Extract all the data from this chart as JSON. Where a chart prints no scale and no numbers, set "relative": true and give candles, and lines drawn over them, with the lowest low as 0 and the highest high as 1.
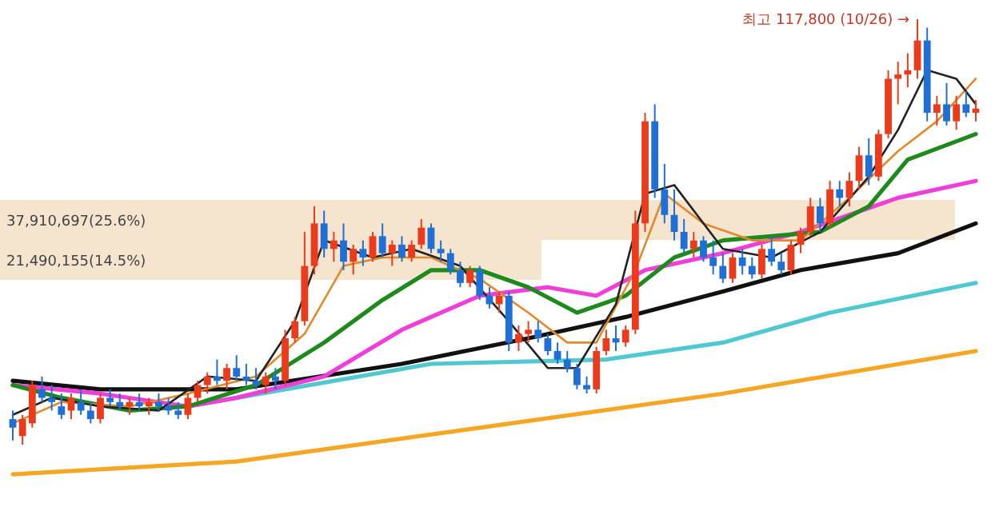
{
  "chart_data": [
    {
      "type": "candlestick",
      "relative": true,
      "categories": [
        null,
        null,
        null,
        null,
        null,
        null,
        null,
        null,
        null,
        null,
        null,
        null,
        null,
        null,
        null,
        null,
        null,
        null,
        null,
        null,
        null,
        null,
        null,
        null,
        null,
        null,
        null,
        null,
        null,
        null,
        null,
        null,
        null,
        null,
        null,
        null,
        null,
        null,
        null,
        null,
        null,
        null,
        null,
        null,
        null,
        null,
        null,
        null,
        null,
        null,
        null,
        null,
        null,
        null,
        null,
        null,
        null,
        null,
        null,
        null,
        null,
        null,
        null,
        null,
        null,
        null,
        null,
        null,
        null,
        null,
        null,
        null,
        null,
        null,
        null,
        null,
        null,
        null,
        null,
        null,
        null,
        null,
        null,
        null,
        null,
        null,
        null,
        null,
        null,
        null,
        null,
        null,
        null,
        null,
        null,
        null,
        null,
        null,
        null,
        null
      ],
      "ohlc": [
        [
          0.06,
          0.08,
          0.01,
          0.04
        ],
        [
          0.02,
          0.07,
          0,
          0.06
        ],
        [
          0.05,
          0.15,
          0.04,
          0.14
        ],
        [
          0.13,
          0.16,
          0.1,
          0.11
        ],
        [
          0.11,
          0.14,
          0.08,
          0.1
        ],
        [
          0.09,
          0.12,
          0.06,
          0.07
        ],
        [
          0.08,
          0.12,
          0.06,
          0.11
        ],
        [
          0.1,
          0.13,
          0.07,
          0.08
        ],
        [
          0.08,
          0.1,
          0.05,
          0.06
        ],
        [
          0.06,
          0.12,
          0.05,
          0.11
        ],
        [
          0.11,
          0.13,
          0.09,
          0.1
        ],
        [
          0.1,
          0.12,
          0.08,
          0.09
        ],
        [
          0.09,
          0.11,
          0.07,
          0.1
        ],
        [
          0.1,
          0.12,
          0.08,
          0.09
        ],
        [
          0.09,
          0.11,
          0.07,
          0.1
        ],
        [
          0.1,
          0.12,
          0.08,
          0.09
        ],
        [
          0.09,
          0.11,
          0.07,
          0.08
        ],
        [
          0.08,
          0.1,
          0.06,
          0.07
        ],
        [
          0.07,
          0.12,
          0.06,
          0.11
        ],
        [
          0.11,
          0.15,
          0.1,
          0.14
        ],
        [
          0.14,
          0.17,
          0.12,
          0.16
        ],
        [
          0.16,
          0.2,
          0.14,
          0.15
        ],
        [
          0.15,
          0.19,
          0.13,
          0.18
        ],
        [
          0.18,
          0.21,
          0.15,
          0.16
        ],
        [
          0.16,
          0.19,
          0.14,
          0.15
        ],
        [
          0.15,
          0.18,
          0.13,
          0.14
        ],
        [
          0.14,
          0.17,
          0.12,
          0.16
        ],
        [
          0.16,
          0.18,
          0.13,
          0.15
        ],
        [
          0.15,
          0.27,
          0.14,
          0.25
        ],
        [
          0.25,
          0.3,
          0.24,
          0.29
        ],
        [
          0.29,
          0.5,
          0.28,
          0.42
        ],
        [
          0.42,
          0.56,
          0.4,
          0.52
        ],
        [
          0.52,
          0.55,
          0.44,
          0.46
        ],
        [
          0.46,
          0.5,
          0.43,
          0.48
        ],
        [
          0.48,
          0.52,
          0.41,
          0.43
        ],
        [
          0.43,
          0.47,
          0.4,
          0.46
        ],
        [
          0.46,
          0.48,
          0.42,
          0.44
        ],
        [
          0.44,
          0.5,
          0.43,
          0.49
        ],
        [
          0.49,
          0.52,
          0.44,
          0.45
        ],
        [
          0.45,
          0.48,
          0.42,
          0.47
        ],
        [
          0.47,
          0.49,
          0.43,
          0.44
        ],
        [
          0.44,
          0.48,
          0.43,
          0.47
        ],
        [
          0.47,
          0.53,
          0.46,
          0.51
        ],
        [
          0.51,
          0.52,
          0.45,
          0.46
        ],
        [
          0.46,
          0.48,
          0.43,
          0.45
        ],
        [
          0.45,
          0.46,
          0.4,
          0.41
        ],
        [
          0.41,
          0.43,
          0.37,
          0.38
        ],
        [
          0.38,
          0.42,
          0.37,
          0.41
        ],
        [
          0.41,
          0.42,
          0.34,
          0.35
        ],
        [
          0.35,
          0.37,
          0.32,
          0.33
        ],
        [
          0.33,
          0.36,
          0.31,
          0.35
        ],
        [
          0.35,
          0.36,
          0.22,
          0.24
        ],
        [
          0.24,
          0.28,
          0.22,
          0.26
        ],
        [
          0.26,
          0.29,
          0.24,
          0.27
        ],
        [
          0.27,
          0.29,
          0.24,
          0.25
        ],
        [
          0.25,
          0.26,
          0.21,
          0.22
        ],
        [
          0.22,
          0.24,
          0.19,
          0.2
        ],
        [
          0.2,
          0.22,
          0.17,
          0.18
        ],
        [
          0.18,
          0.19,
          0.13,
          0.14
        ],
        [
          0.14,
          0.16,
          0.12,
          0.13
        ],
        [
          0.13,
          0.23,
          0.12,
          0.22
        ],
        [
          0.22,
          0.27,
          0.21,
          0.25
        ],
        [
          0.25,
          0.28,
          0.22,
          0.24
        ],
        [
          0.24,
          0.28,
          0.23,
          0.27
        ],
        [
          0.27,
          0.55,
          0.26,
          0.52
        ],
        [
          0.52,
          0.78,
          0.5,
          0.76
        ],
        [
          0.76,
          0.8,
          0.58,
          0.6
        ],
        [
          0.6,
          0.66,
          0.52,
          0.54
        ],
        [
          0.54,
          0.6,
          0.48,
          0.5
        ],
        [
          0.5,
          0.53,
          0.45,
          0.46
        ],
        [
          0.46,
          0.5,
          0.44,
          0.48
        ],
        [
          0.48,
          0.49,
          0.43,
          0.44
        ],
        [
          0.44,
          0.48,
          0.4,
          0.42
        ],
        [
          0.42,
          0.45,
          0.38,
          0.39
        ],
        [
          0.39,
          0.45,
          0.38,
          0.44
        ],
        [
          0.44,
          0.46,
          0.4,
          0.42
        ],
        [
          0.42,
          0.44,
          0.39,
          0.4
        ],
        [
          0.4,
          0.47,
          0.39,
          0.46
        ],
        [
          0.46,
          0.49,
          0.42,
          0.43
        ],
        [
          0.43,
          0.45,
          0.4,
          0.41
        ],
        [
          0.41,
          0.48,
          0.4,
          0.47
        ],
        [
          0.47,
          0.51,
          0.45,
          0.5
        ],
        [
          0.5,
          0.58,
          0.49,
          0.56
        ],
        [
          0.56,
          0.58,
          0.5,
          0.52
        ],
        [
          0.52,
          0.62,
          0.51,
          0.6
        ],
        [
          0.6,
          0.62,
          0.56,
          0.58
        ],
        [
          0.58,
          0.64,
          0.56,
          0.62
        ],
        [
          0.62,
          0.7,
          0.6,
          0.68
        ],
        [
          0.68,
          0.72,
          0.61,
          0.63
        ],
        [
          0.63,
          0.74,
          0.62,
          0.73
        ],
        [
          0.73,
          0.88,
          0.72,
          0.86
        ],
        [
          0.86,
          0.9,
          0.8,
          0.87
        ],
        [
          0.87,
          0.92,
          0.84,
          0.88
        ],
        [
          0.88,
          1,
          0.86,
          0.95
        ],
        [
          0.95,
          0.98,
          0.76,
          0.78
        ],
        [
          0.78,
          0.82,
          0.75,
          0.8
        ],
        [
          0.8,
          0.85,
          0.75,
          0.76
        ],
        [
          0.76,
          0.82,
          0.74,
          0.8
        ],
        [
          0.8,
          0.83,
          0.77,
          0.78
        ],
        [
          0.78,
          0.81,
          0.76,
          0.79
        ]
      ],
      "series": [
        {
          "type": "line",
          "color": "#f5a623",
          "values": [
            -0.07,
            null,
            null,
            null,
            null,
            null,
            null,
            null,
            null,
            null,
            null,
            null,
            null,
            null,
            null,
            null,
            null,
            null,
            null,
            null,
            null,
            null,
            null,
            -0.04,
            null,
            null,
            null,
            null,
            null,
            null,
            null,
            null,
            null,
            null,
            null,
            null,
            null,
            null,
            null,
            null,
            null,
            null,
            null,
            null,
            null,
            null,
            null,
            null,
            0.04,
            null,
            null,
            null,
            null,
            null,
            null,
            null,
            null,
            null,
            null,
            null,
            null,
            null,
            null,
            null,
            null,
            null,
            null,
            null,
            null,
            null,
            null,
            null,
            null,
            0.12,
            null,
            null,
            null,
            null,
            null,
            null,
            null,
            null,
            null,
            null,
            null,
            null,
            null,
            null,
            null,
            null,
            null,
            null,
            null,
            null,
            null,
            null,
            null,
            null,
            null,
            0.22
          ]
        },
        {
          "type": "line",
          "color": "#4fc8cf",
          "values": [
            null,
            null,
            null,
            null,
            null,
            null,
            null,
            null,
            null,
            null,
            null,
            null,
            null,
            null,
            null,
            null,
            null,
            null,
            0.09,
            null,
            null,
            null,
            null,
            null,
            null,
            null,
            null,
            null,
            null,
            null,
            null,
            null,
            null,
            null,
            null,
            null,
            null,
            null,
            null,
            null,
            null,
            null,
            null,
            0.19,
            null,
            null,
            null,
            null,
            null,
            null,
            null,
            null,
            null,
            null,
            null,
            null,
            null,
            null,
            null,
            null,
            null,
            0.2,
            null,
            null,
            null,
            null,
            null,
            null,
            null,
            null,
            null,
            null,
            null,
            0.24,
            null,
            null,
            null,
            null,
            null,
            null,
            null,
            null,
            null,
            null,
            0.31,
            null,
            null,
            null,
            null,
            null,
            null,
            null,
            null,
            null,
            null,
            null,
            null,
            null,
            null,
            0.38
          ]
        },
        {
          "type": "line",
          "color": "#111111",
          "values": [
            0.15,
            null,
            null,
            null,
            null,
            null,
            null,
            null,
            null,
            0.13,
            null,
            null,
            null,
            null,
            null,
            null,
            null,
            null,
            null,
            null,
            null,
            null,
            null,
            0.13,
            null,
            null,
            null,
            null,
            null,
            null,
            null,
            null,
            null,
            null,
            null,
            null,
            null,
            null,
            null,
            null,
            0.19,
            null,
            null,
            null,
            null,
            null,
            null,
            null,
            null,
            null,
            null,
            null,
            null,
            0.25,
            null,
            null,
            null,
            null,
            null,
            null,
            null,
            null,
            null,
            0.3,
            null,
            null,
            null,
            null,
            null,
            null,
            null,
            null,
            null,
            0.36,
            null,
            null,
            null,
            null,
            null,
            null,
            null,
            0.41,
            null,
            null,
            null,
            null,
            null,
            null,
            null,
            null,
            null,
            0.45,
            null,
            null,
            null,
            null,
            null,
            null,
            null,
            0.52
          ]
        },
        {
          "type": "line",
          "color": "#ee3fd8",
          "values": [
            0.14,
            null,
            null,
            null,
            null,
            null,
            null,
            null,
            null,
            0.12,
            null,
            null,
            null,
            null,
            null,
            null,
            null,
            null,
            0.09,
            null,
            null,
            null,
            null,
            0.11,
            null,
            null,
            null,
            null,
            null,
            null,
            null,
            null,
            0.16,
            null,
            null,
            null,
            null,
            null,
            null,
            null,
            0.27,
            null,
            null,
            null,
            null,
            null,
            null,
            null,
            0.35,
            null,
            null,
            null,
            null,
            null,
            null,
            0.37,
            null,
            null,
            null,
            null,
            0.35,
            null,
            null,
            null,
            null,
            0.41,
            null,
            null,
            null,
            null,
            null,
            null,
            null,
            0.45,
            null,
            null,
            null,
            null,
            null,
            null,
            null,
            0.5,
            null,
            null,
            null,
            null,
            null,
            null,
            null,
            null,
            null,
            0.58,
            null,
            null,
            null,
            null,
            null,
            null,
            null,
            0.62
          ]
        },
        {
          "type": "line",
          "color": "#1e8a1e",
          "values": [
            0.14,
            null,
            null,
            null,
            null,
            0.11,
            null,
            null,
            null,
            null,
            null,
            null,
            0.08,
            null,
            null,
            null,
            null,
            null,
            0.09,
            null,
            null,
            null,
            null,
            null,
            null,
            0.14,
            null,
            null,
            null,
            null,
            null,
            null,
            0.24,
            null,
            null,
            null,
            null,
            null,
            0.34,
            null,
            null,
            null,
            null,
            0.41,
            null,
            null,
            null,
            null,
            0.41,
            null,
            null,
            null,
            null,
            0.37,
            null,
            null,
            null,
            null,
            0.31,
            null,
            null,
            null,
            null,
            0.35,
            null,
            null,
            null,
            null,
            0.44,
            null,
            null,
            null,
            null,
            0.48,
            null,
            null,
            null,
            null,
            0.49,
            null,
            null,
            null,
            null,
            0.5,
            null,
            null,
            null,
            null,
            0.56,
            null,
            null,
            null,
            0.67,
            null,
            null,
            null,
            null,
            null,
            null,
            0.73
          ]
        },
        {
          "type": "line",
          "color": "#e08a2c",
          "values": [
            0.05,
            null,
            null,
            null,
            null,
            0.1,
            null,
            null,
            null,
            null,
            null,
            null,
            0.09,
            null,
            null,
            null,
            null,
            null,
            0.12,
            null,
            null,
            null,
            null,
            null,
            null,
            0.16,
            null,
            null,
            null,
            null,
            0.26,
            null,
            null,
            null,
            0.42,
            null,
            null,
            null,
            0.44,
            null,
            null,
            null,
            null,
            0.44,
            null,
            null,
            null,
            null,
            0.39,
            null,
            null,
            null,
            null,
            0.31,
            null,
            null,
            null,
            0.24,
            null,
            null,
            0.24,
            null,
            null,
            null,
            0.41,
            null,
            null,
            0.59,
            null,
            null,
            null,
            0.52,
            null,
            null,
            null,
            null,
            0.48,
            null,
            null,
            null,
            null,
            0.48,
            null,
            null,
            null,
            null,
            0.58,
            null,
            null,
            null,
            null,
            0.69,
            null,
            null,
            null,
            0.76,
            null,
            null,
            null,
            0.86
          ]
        },
        {
          "type": "line",
          "color": "#222222",
          "values": [
            0.07,
            null,
            null,
            null,
            0.11,
            null,
            null,
            null,
            null,
            0.09,
            null,
            null,
            null,
            null,
            null,
            0.08,
            null,
            null,
            null,
            null,
            0.16,
            null,
            null,
            null,
            null,
            0.15,
            null,
            null,
            null,
            0.29,
            null,
            null,
            0.48,
            null,
            null,
            null,
            null,
            0.44,
            null,
            null,
            null,
            0.46,
            null,
            null,
            null,
            null,
            0.42,
            null,
            null,
            null,
            null,
            0.29,
            null,
            null,
            null,
            0.18,
            null,
            null,
            0.18,
            null,
            null,
            null,
            0.33,
            null,
            null,
            0.59,
            null,
            null,
            0.61,
            null,
            null,
            null,
            null,
            0.46,
            null,
            null,
            null,
            null,
            0.44,
            null,
            null,
            null,
            null,
            0.5,
            null,
            null,
            null,
            null,
            0.63,
            null,
            null,
            0.74,
            null,
            null,
            0.88,
            null,
            null,
            0.86,
            null,
            0.8
          ]
        }
      ],
      "annotations": [
        "최고 117,800 (10/26) →"
      ]
    },
    {
      "type": "bar",
      "orientation": "horizontal",
      "categories": [
        null,
        null
      ],
      "values": [
        37910697,
        21490155
      ],
      "color": "#f2dcbd",
      "value_labels": [
        "37,910,697(25.6%)",
        "21,490,155(14.5%)"
      ]
    }
  ]
}
